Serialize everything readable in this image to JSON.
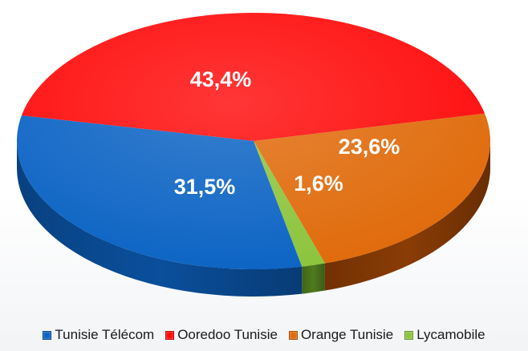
{
  "chart_data": {
    "type": "pie",
    "title": "",
    "categories": [
      "Tunisie Télécom",
      "Ooredoo Tunisie",
      "Orange Tunisie",
      "Lycamobile"
    ],
    "values": [
      31.5,
      43.4,
      23.6,
      1.6
    ],
    "labels": [
      "31,5%",
      "43,4%",
      "23,6%",
      "1,6%"
    ],
    "colors": [
      "#0b63c4",
      "#ff0a0a",
      "#e06a0a",
      "#8cc43c"
    ],
    "side_colors": [
      "#0a4f9c",
      "#b30000",
      "#8a3c05",
      "#4f7a1e"
    ],
    "legend_position": "bottom"
  },
  "legend": {
    "items": [
      {
        "label": "Tunisie Télécom",
        "color": "#0b63c4"
      },
      {
        "label": "Ooredoo Tunisie",
        "color": "#ff0a0a"
      },
      {
        "label": "Orange Tunisie",
        "color": "#e06a0a"
      },
      {
        "label": "Lycamobile",
        "color": "#8cc43c"
      }
    ]
  }
}
